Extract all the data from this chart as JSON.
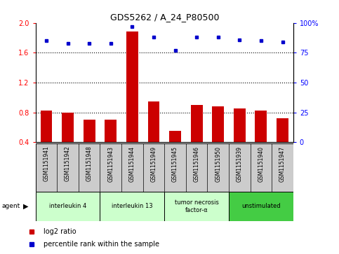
{
  "title": "GDS5262 / A_24_P80500",
  "samples": [
    "GSM1151941",
    "GSM1151942",
    "GSM1151948",
    "GSM1151943",
    "GSM1151944",
    "GSM1151949",
    "GSM1151945",
    "GSM1151946",
    "GSM1151950",
    "GSM1151939",
    "GSM1151940",
    "GSM1151947"
  ],
  "log2_ratio": [
    0.82,
    0.8,
    0.7,
    0.7,
    1.88,
    0.95,
    0.55,
    0.9,
    0.88,
    0.85,
    0.82,
    0.72
  ],
  "percentile": [
    85,
    83,
    83,
    83,
    97,
    88,
    77,
    88,
    88,
    86,
    85,
    84
  ],
  "bar_color": "#cc0000",
  "dot_color": "#0000cc",
  "ylim_left": [
    0.4,
    2.0
  ],
  "ylim_right": [
    0,
    100
  ],
  "yticks_left": [
    0.4,
    0.8,
    1.2,
    1.6,
    2.0
  ],
  "yticks_right": [
    0,
    25,
    50,
    75,
    100
  ],
  "hlines": [
    0.8,
    1.2,
    1.6
  ],
  "agents": [
    {
      "label": "interleukin 4",
      "start": 0,
      "end": 2,
      "color": "#ccffcc"
    },
    {
      "label": "interleukin 13",
      "start": 3,
      "end": 5,
      "color": "#ccffcc"
    },
    {
      "label": "tumor necrosis\nfactor-α",
      "start": 6,
      "end": 8,
      "color": "#ccffcc"
    },
    {
      "label": "unstimulated",
      "start": 9,
      "end": 11,
      "color": "#44cc44"
    }
  ],
  "legend_log2_label": "log2 ratio",
  "legend_pct_label": "percentile rank within the sample",
  "agent_label": "agent",
  "sample_box_color": "#cccccc",
  "figsize": [
    4.83,
    3.63
  ],
  "dpi": 100
}
